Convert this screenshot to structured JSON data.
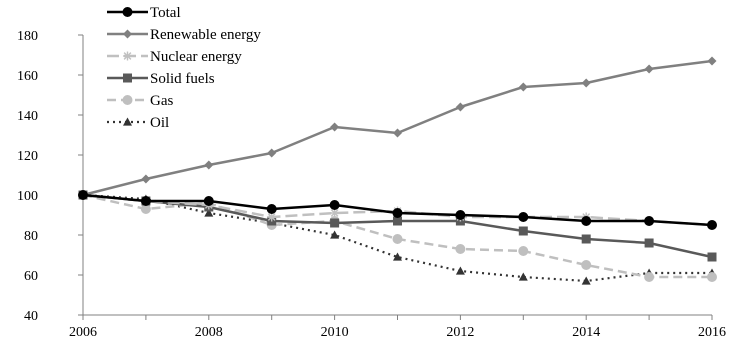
{
  "chart_data": {
    "type": "line",
    "title": "",
    "xlabel": "",
    "ylabel": "",
    "x": [
      2006,
      2007,
      2008,
      2009,
      2010,
      2011,
      2012,
      2013,
      2014,
      2015,
      2016
    ],
    "xlim": [
      2006,
      2016
    ],
    "xticks": [
      "2006",
      "2008",
      "2010",
      "2012",
      "2014",
      "2016"
    ],
    "ylim": [
      40,
      180
    ],
    "yticks": [
      "40",
      "60",
      "80",
      "100",
      "120",
      "140",
      "160",
      "180"
    ],
    "grid": false,
    "legend_position": "top-left",
    "series": [
      {
        "name": "Total",
        "color": "#000000",
        "dash": "solid",
        "marker": "circle",
        "values": [
          100,
          97,
          97,
          93,
          95,
          91,
          90,
          89,
          87,
          87,
          85
        ]
      },
      {
        "name": "Renewable energy",
        "color": "#808080",
        "dash": "solid",
        "marker": "diamond",
        "values": [
          100,
          108,
          115,
          121,
          134,
          131,
          144,
          154,
          156,
          163,
          167
        ]
      },
      {
        "name": "Nuclear energy",
        "color": "#c0c0c0",
        "dash": "long-dash",
        "marker": "star",
        "values": [
          100,
          97,
          95,
          89,
          91,
          92,
          89,
          89,
          89,
          87,
          85
        ]
      },
      {
        "name": "Solid fuels",
        "color": "#595959",
        "dash": "solid",
        "marker": "square",
        "values": [
          100,
          97,
          94,
          87,
          86,
          87,
          87,
          82,
          78,
          76,
          69
        ]
      },
      {
        "name": "Gas",
        "color": "#bfbfbf",
        "dash": "dash",
        "marker": "circle",
        "values": [
          100,
          93,
          96,
          85,
          87,
          78,
          73,
          72,
          65,
          59,
          59
        ]
      },
      {
        "name": "Oil",
        "color": "#333333",
        "dash": "dot",
        "marker": "triangle",
        "values": [
          100,
          98,
          91,
          86,
          80,
          69,
          62,
          59,
          57,
          61,
          61
        ]
      }
    ]
  }
}
